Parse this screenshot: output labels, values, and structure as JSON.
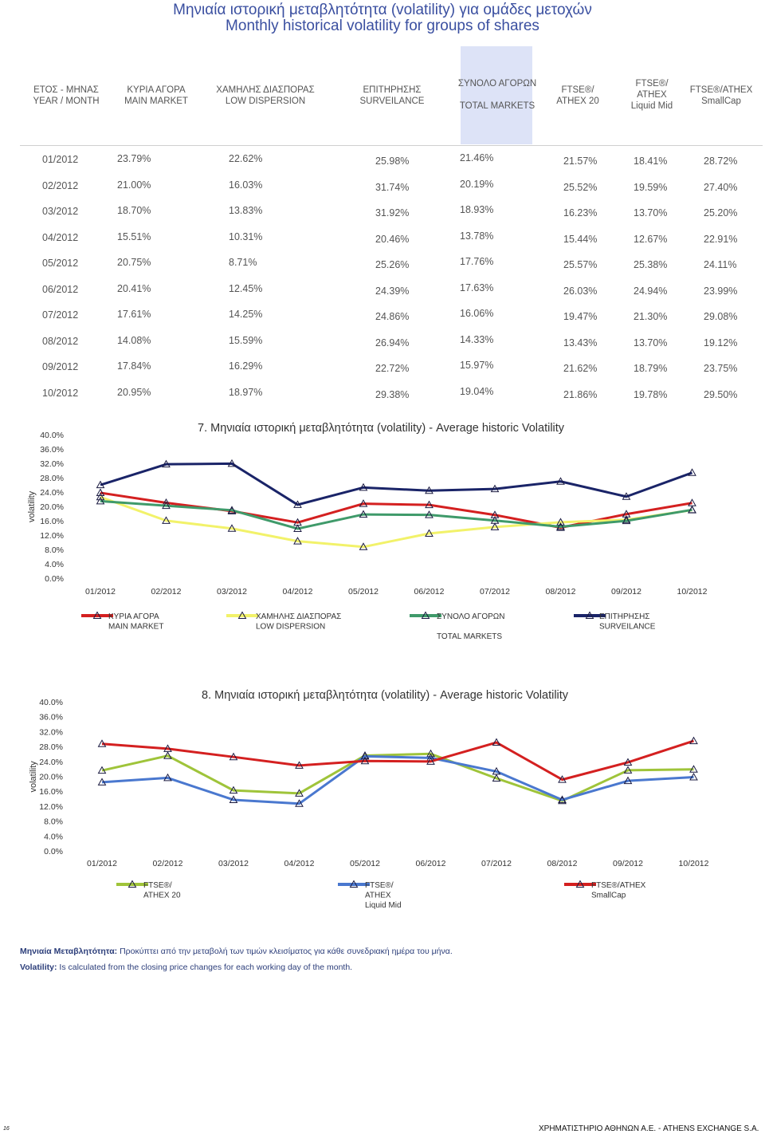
{
  "title_gr": "Μηνιαία ιστορική μεταβλητότητα (volatility) για ομάδες μετοχών",
  "title_en": "Monthly historical volatility for groups of shares",
  "columns": [
    "ΕΤΟΣ - ΜΗΝΑΣ\nYEAR / MONTH",
    "ΚΥΡΙΑ ΑΓΟΡΑ\nMAIN MARKET",
    "ΧΑΜΗΛΗΣ ΔΙΑΣΠΟΡΑΣ\nLOW DISPERSION",
    "ΕΠΙΤΗΡΗΣΗΣ\nSURVEILANCE",
    "ΣΥΝΟΛΟ ΑΓΟΡΩΝ\n\nTOTAL MARKETS",
    "FTSE®/\nATHEX 20",
    "FTSE®/\nATHEX\nLiquid Mid",
    "FTSE®/ATHEX\nSmallCap"
  ],
  "rows": [
    [
      "01/2012",
      "23.79%",
      "22.62%",
      "25.98%",
      "21.46%",
      "21.57%",
      "18.41%",
      "28.72%"
    ],
    [
      "02/2012",
      "21.00%",
      "16.03%",
      "31.74%",
      "20.19%",
      "25.52%",
      "19.59%",
      "27.40%"
    ],
    [
      "03/2012",
      "18.70%",
      "13.83%",
      "31.92%",
      "18.93%",
      "16.23%",
      "13.70%",
      "25.20%"
    ],
    [
      "04/2012",
      "15.51%",
      "10.31%",
      "20.46%",
      "13.78%",
      "15.44%",
      "12.67%",
      "22.91%"
    ],
    [
      "05/2012",
      "20.75%",
      "8.71%",
      "25.26%",
      "17.76%",
      "25.57%",
      "25.38%",
      "24.11%"
    ],
    [
      "06/2012",
      "20.41%",
      "12.45%",
      "24.39%",
      "17.63%",
      "26.03%",
      "24.94%",
      "23.99%"
    ],
    [
      "07/2012",
      "17.61%",
      "14.25%",
      "24.86%",
      "16.06%",
      "19.47%",
      "21.30%",
      "29.08%"
    ],
    [
      "08/2012",
      "14.08%",
      "15.59%",
      "26.94%",
      "14.33%",
      "13.43%",
      "13.70%",
      "19.12%"
    ],
    [
      "09/2012",
      "17.84%",
      "16.29%",
      "22.72%",
      "15.97%",
      "21.62%",
      "18.79%",
      "23.75%"
    ],
    [
      "10/2012",
      "20.95%",
      "18.97%",
      "29.38%",
      "19.04%",
      "21.86%",
      "19.78%",
      "29.50%"
    ]
  ],
  "chart_data": [
    {
      "type": "line",
      "title": "7. Μηνιαία ιστορική μεταβλητότητα (volatility) - Average historic Volatility",
      "ylabel": "volatility",
      "xlabel": "",
      "ylim": [
        0,
        40
      ],
      "yticks": [
        "0.0%",
        "4.0%",
        "8.0%",
        "12.0%",
        "16.0%",
        "20.0%",
        "24.0%",
        "28.0%",
        "32.0%",
        "36.0%",
        "40.0%"
      ],
      "categories": [
        "01/2012",
        "02/2012",
        "03/2012",
        "04/2012",
        "05/2012",
        "06/2012",
        "07/2012",
        "08/2012",
        "09/2012",
        "10/2012"
      ],
      "series": [
        {
          "name": "ΚΥΡΙΑ ΑΓΟΡΑ\nMAIN MARKET",
          "color": "#d42020",
          "values": [
            23.79,
            21.0,
            18.7,
            15.51,
            20.75,
            20.41,
            17.61,
            14.08,
            17.84,
            20.95
          ]
        },
        {
          "name": "ΧΑΜΗΛΗΣ ΔΙΑΣΠΟΡΑΣ\nLOW DISPERSION",
          "color": "#f2f26a",
          "values": [
            22.62,
            16.03,
            13.83,
            10.31,
            8.71,
            12.45,
            14.25,
            15.59,
            16.29,
            18.97
          ]
        },
        {
          "name": "ΣΥΝΟΛΟ ΑΓΟΡΩΝ\n\nTOTAL MARKETS",
          "color": "#3f9a6a",
          "values": [
            21.46,
            20.19,
            18.93,
            13.78,
            17.76,
            17.63,
            16.06,
            14.33,
            15.97,
            19.04
          ]
        },
        {
          "name": "ΕΠΙΤΗΡΗΣΗΣ\nSURVEILANCE",
          "color": "#1a2468",
          "values": [
            25.98,
            31.74,
            31.92,
            20.46,
            25.26,
            24.39,
            24.86,
            26.94,
            22.72,
            29.38
          ]
        }
      ]
    },
    {
      "type": "line",
      "title": "8. Μηνιαία ιστορική μεταβλητότητα (volatility) - Average historic Volatility",
      "ylabel": "volatility",
      "xlabel": "",
      "ylim": [
        0,
        40
      ],
      "yticks": [
        "0.0%",
        "4.0%",
        "8.0%",
        "12.0%",
        "16.0%",
        "20.0%",
        "24.0%",
        "28.0%",
        "32.0%",
        "36.0%",
        "40.0%"
      ],
      "categories": [
        "01/2012",
        "02/2012",
        "03/2012",
        "04/2012",
        "05/2012",
        "06/2012",
        "07/2012",
        "08/2012",
        "09/2012",
        "10/2012"
      ],
      "series": [
        {
          "name": "FTSE®/\nATHEX 20",
          "color": "#9fc43a",
          "values": [
            21.57,
            25.52,
            16.23,
            15.44,
            25.57,
            26.03,
            19.47,
            13.43,
            21.62,
            21.86
          ]
        },
        {
          "name": "FTSE®/\nATHEX\nLiquid Mid",
          "color": "#4a78cf",
          "values": [
            18.41,
            19.59,
            13.7,
            12.67,
            25.38,
            24.94,
            21.3,
            13.7,
            18.79,
            19.78
          ]
        },
        {
          "name": "FTSE®/ATHEX\nSmallCap",
          "color": "#d42020",
          "values": [
            28.72,
            27.4,
            25.2,
            22.91,
            24.11,
            23.99,
            29.08,
            19.12,
            23.75,
            29.5
          ]
        }
      ]
    }
  ],
  "notes": {
    "gr_label": "Μηνιαία Μεταβλητότητα:",
    "gr_text": " Προκύπτει από την μεταβολή των τιμών κλεισίματος για κάθε συνεδριακή ημέρα του μήνα.",
    "en_label": "Volatility:",
    "en_text": " Is calculated from the closing price changes for each working day of the month."
  },
  "footer": "ΧΡΗΜΑΤΙΣΤΗΡΙΟ ΑΘΗΝΩΝ Α.Ε. - ATHENS EXCHANGE S.A.",
  "page_number": "16"
}
